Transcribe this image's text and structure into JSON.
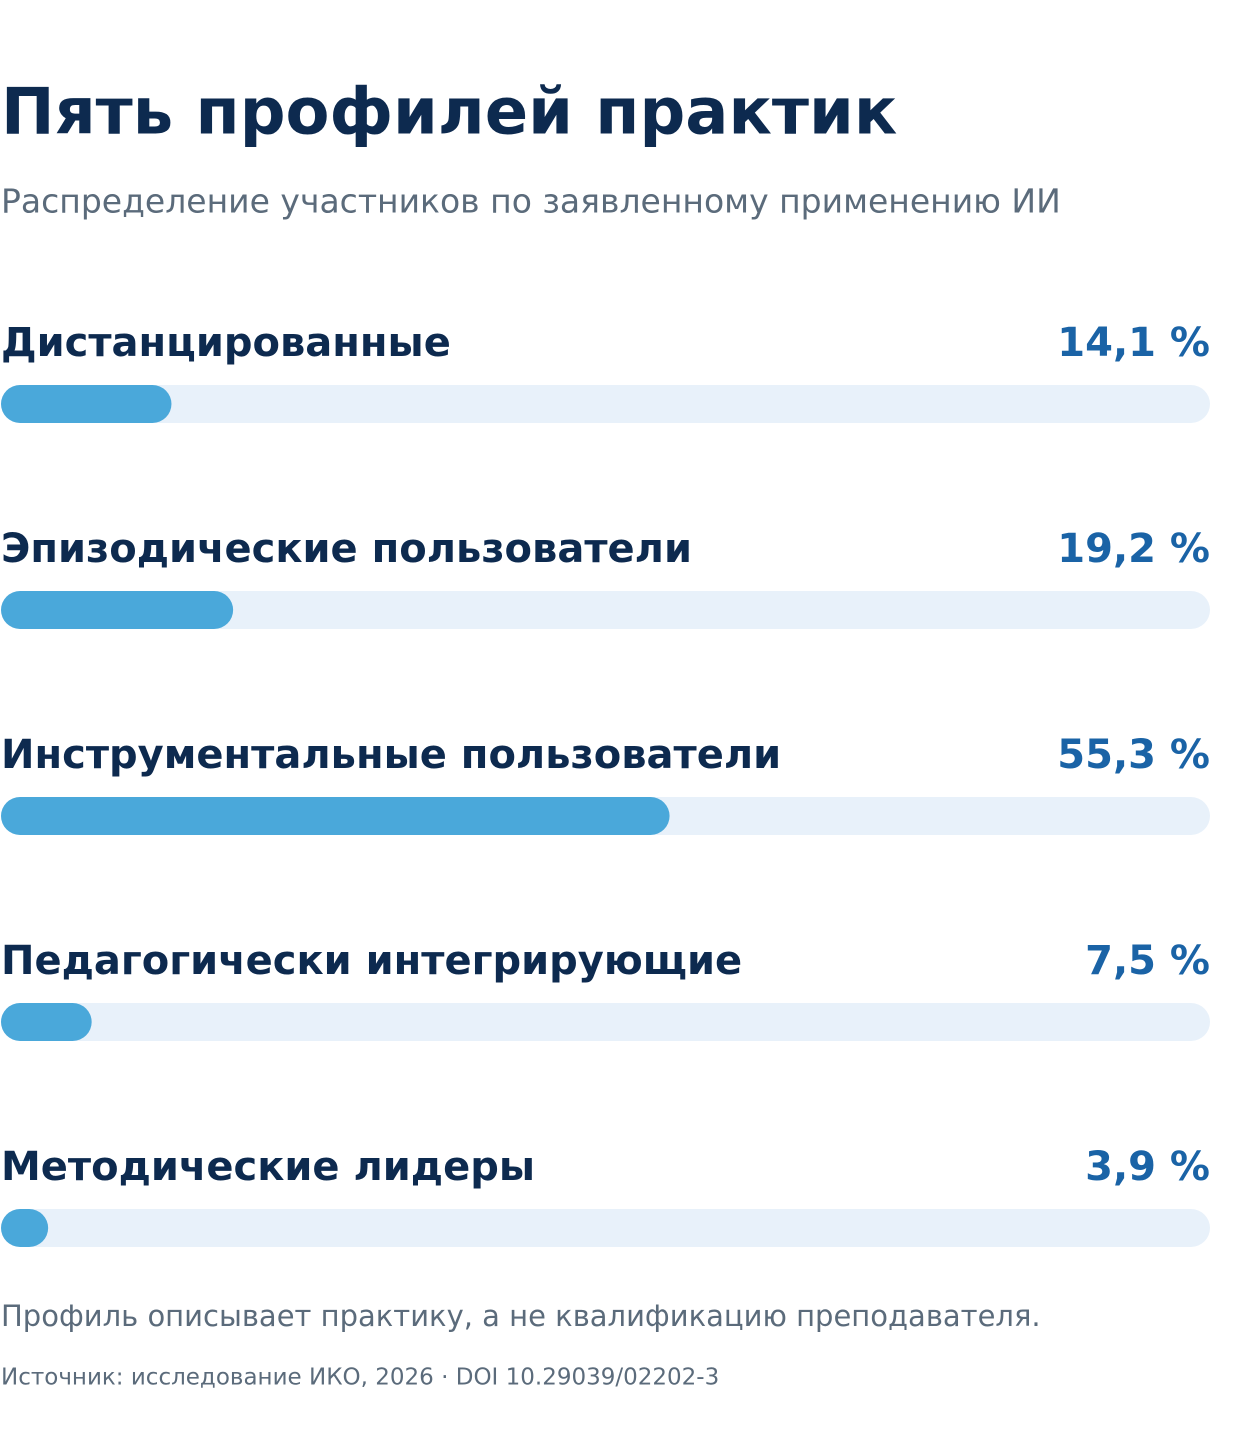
{
  "chart_data": {
    "type": "bar",
    "orientation": "horizontal",
    "title": "Пять профилей практик",
    "subtitle": "Распределение участников по заявленному применению ИИ",
    "categories": [
      "Дистанцированные",
      "Эпизодические пользователи",
      "Инструментальные пользователи",
      "Педагогически интегрирующие",
      "Методические лидеры"
    ],
    "values": [
      14.1,
      19.2,
      55.3,
      7.5,
      3.9
    ],
    "value_labels": [
      "14,1 %",
      "19,2 %",
      "55,3 %",
      "7,5 %",
      "3,9 %"
    ],
    "color": "#4aa8da",
    "track_color": "#e8f1fa",
    "value_label_color": "#1a63a6",
    "xlim": [
      0,
      100
    ],
    "note": "Профиль описывает практику, а не квалификацию преподавателя.",
    "source": "Источник: исследование ИКО, 2026 · DOI 10.29039/02202-3"
  }
}
